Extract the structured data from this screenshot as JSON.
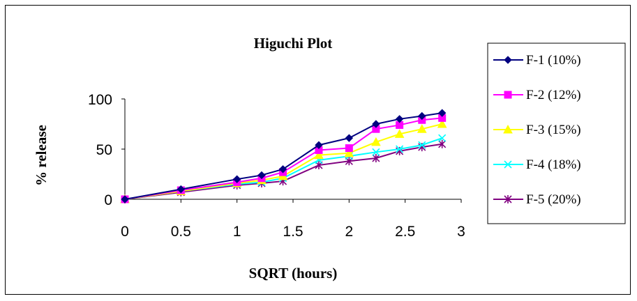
{
  "chart_data": {
    "type": "line",
    "title": "Higuchi Plot",
    "xlabel": "SQRT (hours)",
    "ylabel": "% release",
    "xlim": [
      0,
      3
    ],
    "ylim": [
      0,
      100
    ],
    "x_ticks": [
      "0",
      "0.5",
      "1",
      "1.5",
      "2",
      "2.5",
      "3"
    ],
    "y_ticks": [
      "0",
      "50",
      "100"
    ],
    "grid": false,
    "legend": "right",
    "x": [
      0,
      0.5,
      1,
      1.22,
      1.41,
      1.73,
      2,
      2.24,
      2.45,
      2.65,
      2.83
    ],
    "series": [
      {
        "name": "F-1 (10%)",
        "color": "#000080",
        "marker": "diamond",
        "values": [
          0,
          10,
          20,
          24,
          30,
          54,
          61,
          75,
          80,
          83,
          86
        ]
      },
      {
        "name": "F-2 (12%)",
        "color": "#FF00FF",
        "marker": "square",
        "values": [
          0,
          9,
          17,
          21,
          27,
          49,
          51,
          70,
          74,
          79,
          81
        ]
      },
      {
        "name": "F-3 (15%)",
        "color": "#FFFF00",
        "marker": "triangle",
        "values": [
          0,
          8,
          16,
          19,
          23,
          44,
          46,
          57,
          65,
          70,
          75
        ]
      },
      {
        "name": "F-4 (18%)",
        "color": "#00FFFF",
        "marker": "x",
        "values": [
          0,
          8,
          15,
          17,
          21,
          39,
          43,
          47,
          50,
          54,
          61
        ]
      },
      {
        "name": "F-5 (20%)",
        "color": "#800080",
        "marker": "asterisk",
        "values": [
          0,
          7,
          14,
          16,
          18,
          34,
          38,
          41,
          48,
          52,
          55
        ]
      }
    ]
  }
}
